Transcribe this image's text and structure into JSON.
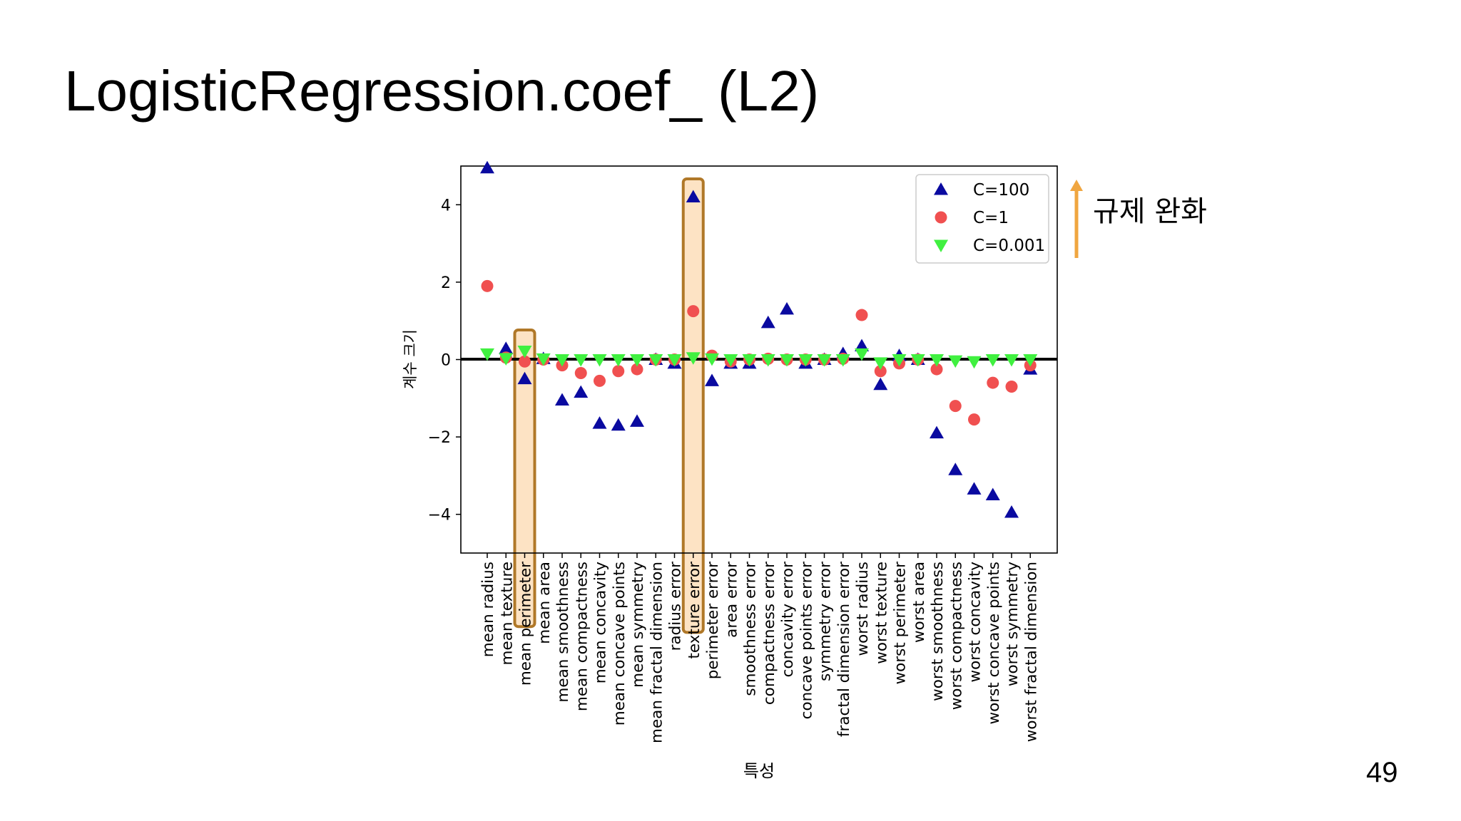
{
  "slide": {
    "title": "LogisticRegression.coef_ (L2)",
    "page_number": "49",
    "annotation": "규제 완화",
    "annotation_arrow_color": "#f0a640"
  },
  "highlight": {
    "features": [
      "mean perimeter",
      "texture error"
    ],
    "border_color": "#b07828",
    "fill_color": "#fde3c4"
  },
  "chart_data": {
    "type": "scatter",
    "xlabel": "특성",
    "ylabel": "계수 크기",
    "ylim": [
      -5,
      5
    ],
    "yticks": [
      -4,
      -2,
      0,
      2,
      4
    ],
    "ytick_labels": [
      "−4",
      "−2",
      "0",
      "2",
      "4"
    ],
    "zero_line": true,
    "grid": false,
    "legend_position": "top-right",
    "categories": [
      "mean radius",
      "mean texture",
      "mean perimeter",
      "mean area",
      "mean smoothness",
      "mean compactness",
      "mean concavity",
      "mean concave points",
      "mean symmetry",
      "mean fractal dimension",
      "radius error",
      "texture error",
      "perimeter error",
      "area error",
      "smoothness error",
      "compactness error",
      "concavity error",
      "concave points error",
      "symmetry error",
      "fractal dimension error",
      "worst radius",
      "worst texture",
      "worst perimeter",
      "worst area",
      "worst smoothness",
      "worst compactness",
      "worst concavity",
      "worst concave points",
      "worst symmetry",
      "worst fractal dimension"
    ],
    "series": [
      {
        "name": "C=100",
        "marker": "triangle-up",
        "color": "#0a0aa0",
        "values": [
          4.95,
          0.28,
          -0.5,
          0.02,
          -1.05,
          -0.85,
          -1.65,
          -1.7,
          -1.6,
          0.0,
          -0.1,
          4.2,
          -0.55,
          -0.1,
          -0.1,
          0.95,
          1.3,
          -0.1,
          0.0,
          0.15,
          0.35,
          -0.65,
          0.1,
          0.0,
          -1.9,
          -2.85,
          -3.35,
          -3.5,
          -3.95,
          -0.25
        ]
      },
      {
        "name": "C=1",
        "marker": "circle",
        "color": "#f05050",
        "values": [
          1.9,
          0.05,
          -0.05,
          0.0,
          -0.15,
          -0.35,
          -0.55,
          -0.3,
          -0.25,
          0.0,
          0.0,
          1.25,
          0.1,
          -0.05,
          0.0,
          0.02,
          0.0,
          0.0,
          0.0,
          0.02,
          1.15,
          -0.3,
          -0.1,
          0.0,
          -0.25,
          -1.2,
          -1.55,
          -0.6,
          -0.7,
          -0.15
        ]
      },
      {
        "name": "C=0.001",
        "marker": "triangle-down",
        "color": "#40f040",
        "values": [
          0.15,
          0.03,
          0.22,
          0.02,
          0.0,
          0.0,
          0.0,
          0.0,
          0.0,
          0.0,
          0.0,
          0.05,
          0.02,
          0.0,
          0.0,
          0.0,
          0.0,
          0.0,
          0.0,
          0.0,
          0.15,
          -0.08,
          0.0,
          0.0,
          0.0,
          -0.03,
          -0.05,
          0.0,
          0.0,
          0.0
        ]
      }
    ]
  }
}
